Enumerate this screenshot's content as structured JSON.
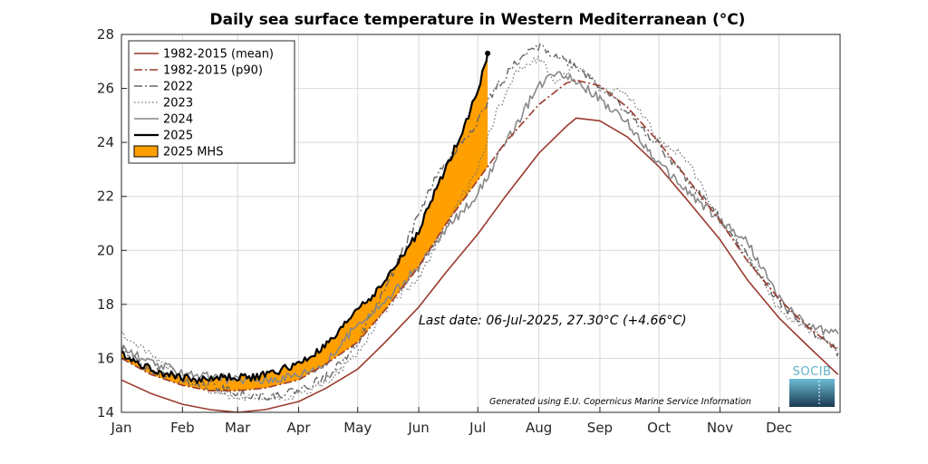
{
  "chart_data": {
    "type": "line",
    "title": "Daily sea surface temperature in Western Mediterranean (°C)",
    "xlabel": "",
    "ylabel": "",
    "x_ticks": [
      "Jan",
      "Feb",
      "Mar",
      "Apr",
      "May",
      "Jun",
      "Jul",
      "Aug",
      "Sep",
      "Oct",
      "Nov",
      "Dec"
    ],
    "ylim": [
      14,
      28
    ],
    "y_ticks": [
      "14",
      "16",
      "18",
      "20",
      "22",
      "24",
      "26",
      "28"
    ],
    "grid": true,
    "legend_position": "top-left",
    "annotation": "Last date: 06-Jul-2025, 27.30°C (+4.66°C)",
    "credit": "Generated using E.U. Copernicus Marine Service Information",
    "logo_text": "SOCIB",
    "series": [
      {
        "name": "1982-2015 (mean)",
        "style": "solid",
        "color": "#9a3a2c",
        "x": [
          "2025-01-01",
          "2025-01-16",
          "2025-02-01",
          "2025-02-15",
          "2025-03-01",
          "2025-03-15",
          "2025-04-01",
          "2025-04-15",
          "2025-05-01",
          "2025-05-15",
          "2025-06-01",
          "2025-06-15",
          "2025-07-01",
          "2025-07-15",
          "2025-08-01",
          "2025-08-15",
          "2025-08-20",
          "2025-09-01",
          "2025-09-15",
          "2025-10-01",
          "2025-10-15",
          "2025-11-01",
          "2025-11-15",
          "2025-12-01",
          "2025-12-15",
          "2025-12-31"
        ],
        "y": [
          15.2,
          14.7,
          14.3,
          14.1,
          14.0,
          14.1,
          14.4,
          14.9,
          15.6,
          16.6,
          17.9,
          19.2,
          20.6,
          22.0,
          23.6,
          24.6,
          24.9,
          24.8,
          24.2,
          23.1,
          21.9,
          20.4,
          18.9,
          17.5,
          16.5,
          15.4
        ]
      },
      {
        "name": "1982-2015 (p90)",
        "style": "dashdot",
        "color": "#9a3a2c",
        "x": [
          "2025-01-01",
          "2025-01-16",
          "2025-02-01",
          "2025-02-15",
          "2025-03-01",
          "2025-03-15",
          "2025-04-01",
          "2025-04-15",
          "2025-05-01",
          "2025-05-15",
          "2025-06-01",
          "2025-06-15",
          "2025-07-01",
          "2025-07-15",
          "2025-08-01",
          "2025-08-15",
          "2025-08-20",
          "2025-09-01",
          "2025-09-15",
          "2025-10-01",
          "2025-10-15",
          "2025-11-01",
          "2025-11-15",
          "2025-12-01",
          "2025-12-15",
          "2025-12-31"
        ],
        "y": [
          16.0,
          15.4,
          15.0,
          14.8,
          14.8,
          14.9,
          15.2,
          15.8,
          16.6,
          17.8,
          19.4,
          21.0,
          22.6,
          24.0,
          25.4,
          26.2,
          26.3,
          26.1,
          25.3,
          24.0,
          22.7,
          21.1,
          19.6,
          18.2,
          17.2,
          16.3
        ]
      },
      {
        "name": "2022",
        "style": "dashdot",
        "color": "#666666",
        "x": [
          "2025-01-01",
          "2025-01-16",
          "2025-02-01",
          "2025-02-15",
          "2025-03-01",
          "2025-03-15",
          "2025-04-01",
          "2025-04-15",
          "2025-05-01",
          "2025-05-15",
          "2025-06-01",
          "2025-06-10",
          "2025-06-15",
          "2025-07-01",
          "2025-07-10",
          "2025-07-20",
          "2025-08-01",
          "2025-08-10",
          "2025-08-20",
          "2025-09-01",
          "2025-09-15",
          "2025-10-01",
          "2025-10-15",
          "2025-11-01",
          "2025-11-15",
          "2025-12-01",
          "2025-12-15",
          "2025-12-31"
        ],
        "y": [
          16.3,
          15.6,
          15.2,
          15.0,
          14.7,
          14.6,
          14.8,
          15.3,
          16.6,
          18.6,
          21.3,
          22.8,
          23.2,
          24.8,
          26.0,
          26.9,
          27.6,
          27.2,
          26.8,
          26.1,
          25.1,
          23.9,
          22.6,
          21.2,
          19.8,
          18.1,
          17.2,
          16.2
        ]
      },
      {
        "name": "2023",
        "style": "dotted",
        "color": "#777777",
        "x": [
          "2025-01-01",
          "2025-01-16",
          "2025-02-01",
          "2025-02-15",
          "2025-03-01",
          "2025-03-15",
          "2025-04-01",
          "2025-04-15",
          "2025-05-01",
          "2025-05-15",
          "2025-06-01",
          "2025-06-15",
          "2025-07-01",
          "2025-07-10",
          "2025-07-20",
          "2025-08-01",
          "2025-08-10",
          "2025-08-20",
          "2025-09-01",
          "2025-09-15",
          "2025-10-01",
          "2025-10-15",
          "2025-11-01",
          "2025-11-15",
          "2025-12-01",
          "2025-12-15",
          "2025-12-31"
        ],
        "y": [
          16.9,
          16.1,
          15.3,
          14.8,
          14.5,
          14.5,
          14.6,
          15.1,
          16.2,
          17.8,
          19.0,
          20.9,
          23.0,
          25.0,
          26.6,
          27.1,
          26.2,
          26.9,
          26.0,
          25.8,
          24.1,
          23.4,
          21.1,
          19.8,
          17.8,
          17.1,
          16.3
        ]
      },
      {
        "name": "2024",
        "style": "solid",
        "color": "#888888",
        "x": [
          "2025-01-01",
          "2025-01-16",
          "2025-02-01",
          "2025-02-15",
          "2025-03-01",
          "2025-03-15",
          "2025-04-01",
          "2025-04-15",
          "2025-05-01",
          "2025-05-15",
          "2025-06-01",
          "2025-06-15",
          "2025-07-01",
          "2025-07-10",
          "2025-07-20",
          "2025-08-01",
          "2025-08-10",
          "2025-08-20",
          "2025-09-01",
          "2025-09-15",
          "2025-10-01",
          "2025-10-15",
          "2025-11-01",
          "2025-11-15",
          "2025-12-01",
          "2025-12-15",
          "2025-12-31"
        ],
        "y": [
          16.4,
          15.8,
          15.5,
          15.3,
          15.2,
          15.2,
          15.4,
          15.8,
          17.3,
          18.1,
          19.4,
          20.8,
          22.1,
          23.3,
          24.6,
          26.1,
          26.7,
          26.3,
          25.6,
          24.7,
          23.2,
          22.2,
          21.1,
          20.3,
          18.2,
          17.2,
          16.9
        ]
      },
      {
        "name": "2025",
        "style": "solid",
        "color": "#000000",
        "x": [
          "2025-01-01",
          "2025-01-10",
          "2025-01-20",
          "2025-02-01",
          "2025-02-10",
          "2025-02-20",
          "2025-03-01",
          "2025-03-10",
          "2025-03-20",
          "2025-04-01",
          "2025-04-10",
          "2025-04-20",
          "2025-05-01",
          "2025-05-10",
          "2025-05-20",
          "2025-06-01",
          "2025-06-10",
          "2025-06-20",
          "2025-06-25",
          "2025-07-01",
          "2025-07-06"
        ],
        "y": [
          16.2,
          15.8,
          15.5,
          15.3,
          15.2,
          15.3,
          15.3,
          15.3,
          15.5,
          15.8,
          16.2,
          16.8,
          17.9,
          18.4,
          19.4,
          20.7,
          22.3,
          23.9,
          24.8,
          25.9,
          27.3
        ]
      }
    ],
    "mhs": {
      "name": "2025 MHS",
      "color": "#ff9f00"
    }
  }
}
